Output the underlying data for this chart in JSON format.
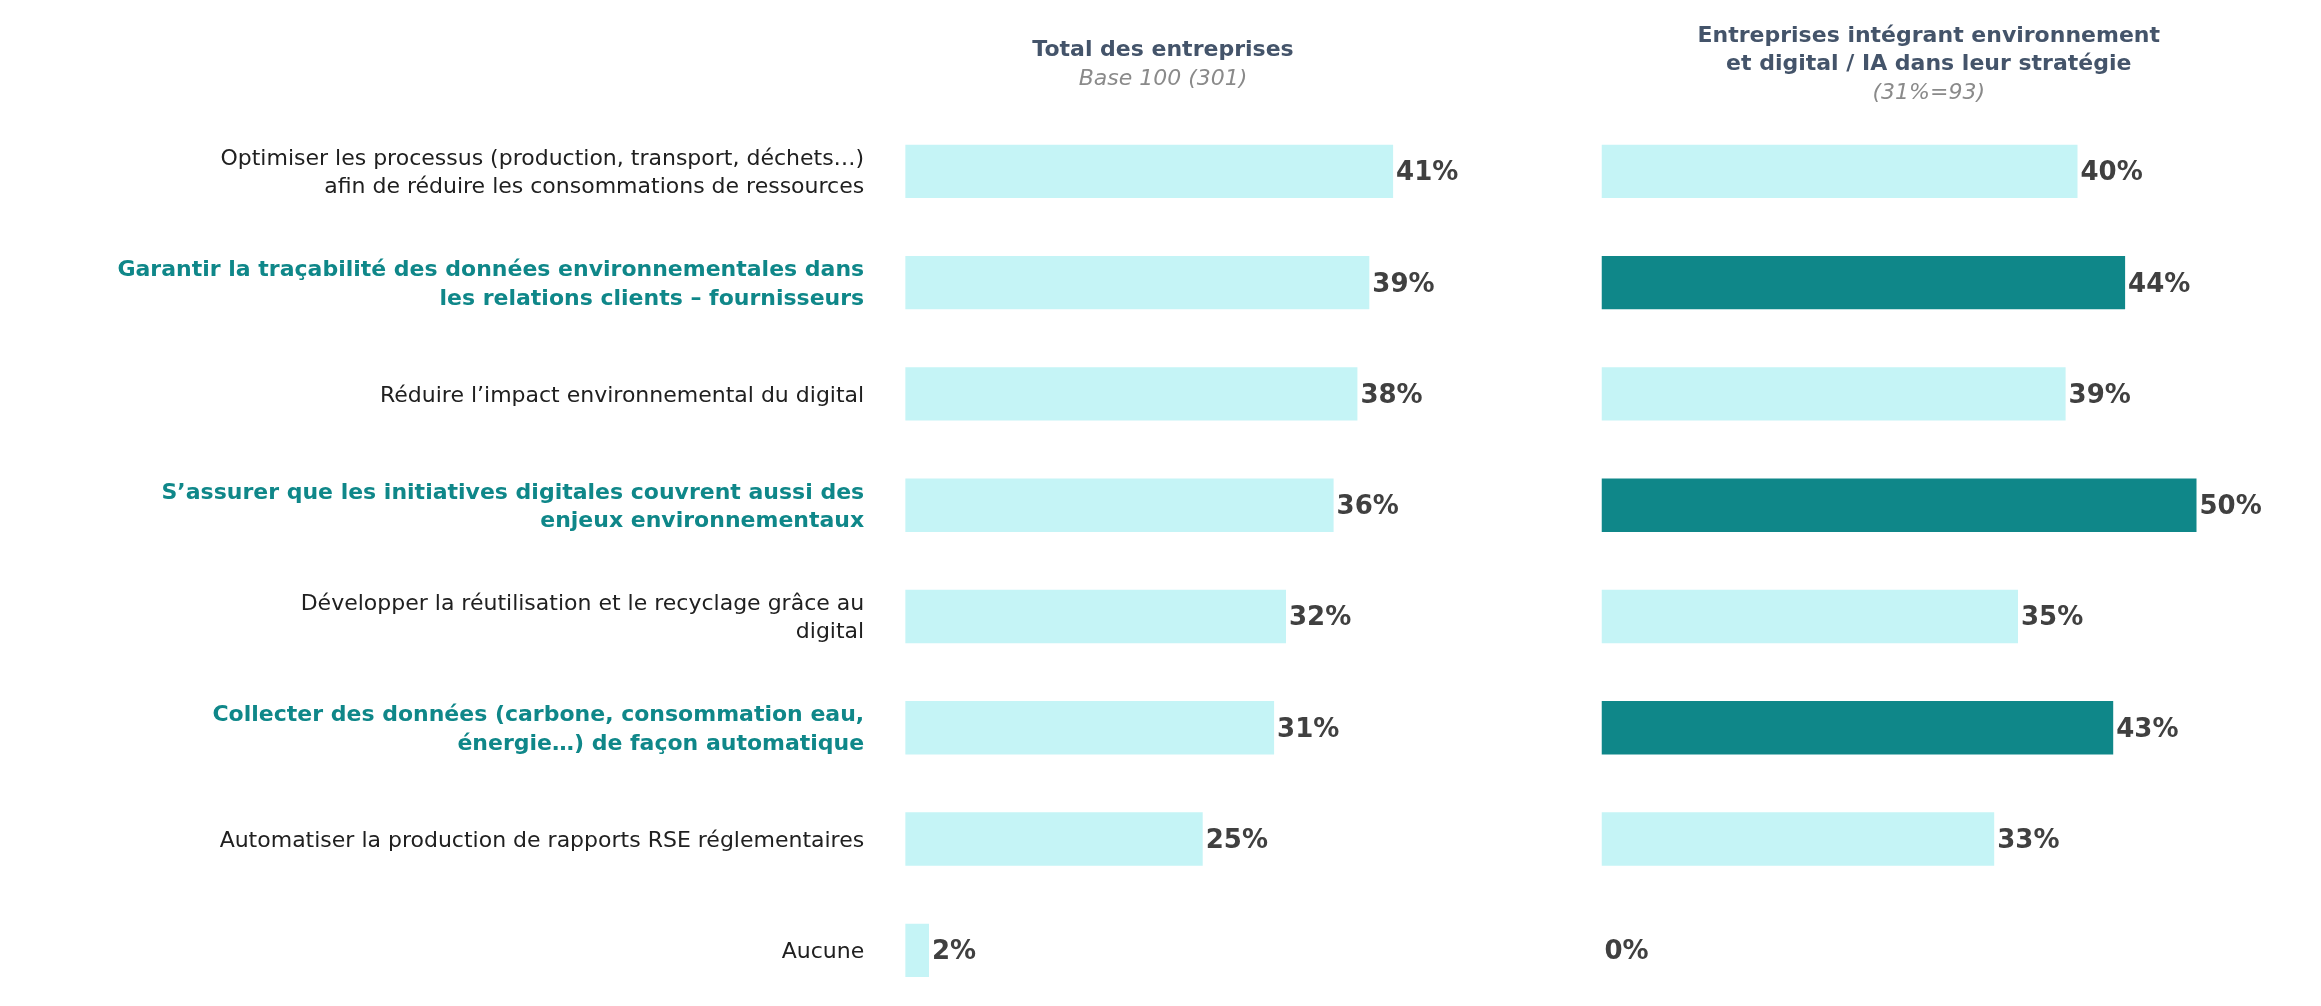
{
  "chart_data": [
    {
      "type": "bar",
      "orientation": "horizontal",
      "title": "Total des entreprises",
      "subtitle": "Base 100 (301)",
      "categories": [
        "Optimiser les processus (production, transport, déchets…) afin de réduire les consommations de ressources",
        "Garantir la traçabilité des données environnementales dans les relations clients – fournisseurs",
        "Réduire l’impact environnemental du digital",
        "S’assurer que les initiatives digitales couvrent aussi des enjeux environnementaux",
        "Développer la réutilisation et le recyclage grâce au digital",
        "Collecter des données (carbone, consommation eau, énergie…) de façon automatique",
        "Automatiser la production de rapports RSE réglementaires",
        "Aucune"
      ],
      "values": [
        41,
        39,
        38,
        36,
        32,
        31,
        25,
        2
      ],
      "value_labels": [
        "41%",
        "39%",
        "38%",
        "36%",
        "32%",
        "31%",
        "25%",
        "2%"
      ],
      "colors": [
        "#c5f4f6",
        "#c5f4f6",
        "#c5f4f6",
        "#c5f4f6",
        "#c5f4f6",
        "#c5f4f6",
        "#c5f4f6",
        "#c5f4f6"
      ],
      "tick_labels": "y"
    },
    {
      "type": "bar",
      "orientation": "horizontal",
      "title": "Entreprises intégrant environnement et digital / IA dans leur stratégie",
      "subtitle": "(31%=93)",
      "categories": [
        "Optimiser les processus (production, transport, déchets…) afin de réduire les consommations de ressources",
        "Garantir la traçabilité des données environnementales dans les relations clients – fournisseurs",
        "Réduire l’impact environnemental du digital",
        "S’assurer que les initiatives digitales couvrent aussi des enjeux environnementaux",
        "Développer la réutilisation et le recyclage grâce au digital",
        "Collecter des données (carbone, consommation eau, énergie…) de façon automatique",
        "Automatiser la production de rapports RSE réglementaires",
        "Aucune"
      ],
      "values": [
        40,
        44,
        39,
        50,
        35,
        43,
        33,
        0
      ],
      "value_labels": [
        "40%",
        "44%",
        "39%",
        "50%",
        "35%",
        "43%",
        "33%",
        "0%"
      ],
      "colors": [
        "#c5f4f6",
        "#0f8789",
        "#c5f4f6",
        "#0f8789",
        "#c5f4f6",
        "#0f8789",
        "#c5f4f6",
        "#c5f4f6"
      ],
      "tick_labels": false
    }
  ]
}
